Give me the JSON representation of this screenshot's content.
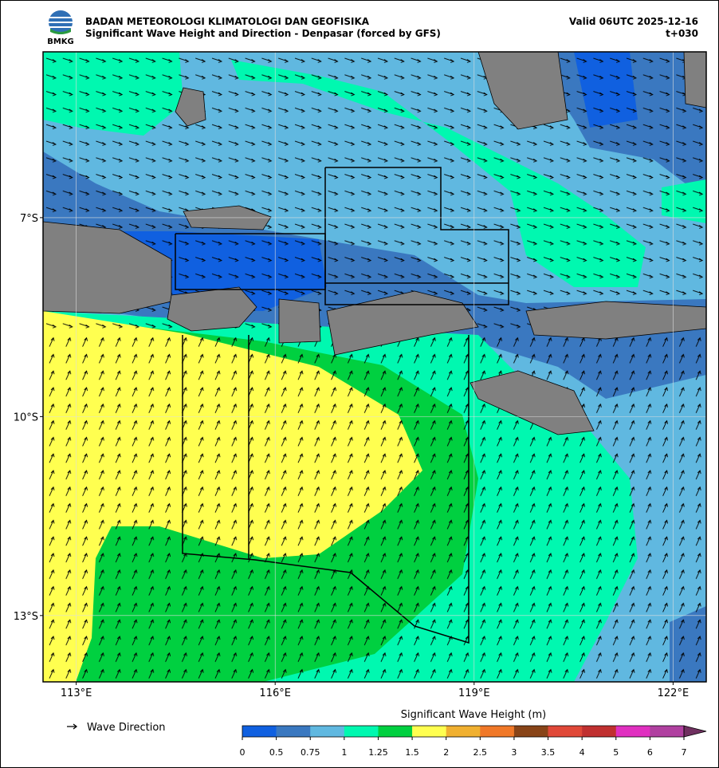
{
  "header": {
    "logo_text": "BMKG",
    "agency": "BADAN METEOROLOGI KLIMATOLOGI DAN GEOFISIKA",
    "title": "Significant Wave Height and Direction - Denpasar (forced by GFS)",
    "valid": "Valid 06UTC 2025-12-16",
    "lead": "t+030"
  },
  "map": {
    "xlim": [
      112.5,
      122.5
    ],
    "ylim": [
      -14,
      -4.5
    ],
    "xticks": [
      {
        "value": 113,
        "label": "113°E"
      },
      {
        "value": 116,
        "label": "116°E"
      },
      {
        "value": 119,
        "label": "119°E"
      },
      {
        "value": 122,
        "label": "122°E"
      }
    ],
    "yticks": [
      {
        "value": -7,
        "label": "7°S"
      },
      {
        "value": -10,
        "label": "10°S"
      },
      {
        "value": -13,
        "label": "13°S"
      }
    ],
    "grid": true
  },
  "legend": {
    "arrow_label": "Wave Direction"
  },
  "colorbar": {
    "title": "Significant Wave Height (m)",
    "boundaries": [
      0,
      0.5,
      0.75,
      1,
      1.25,
      1.5,
      2,
      2.5,
      3,
      3.5,
      4,
      5,
      6,
      7
    ],
    "colors": [
      "#1060e0",
      "#3a78c0",
      "#60b8e0",
      "#00f8b0",
      "#00d040",
      "#ffff50",
      "#f0b030",
      "#f07828",
      "#884418",
      "#e04838",
      "#c03030",
      "#e030c0",
      "#b040a0"
    ],
    "extend_color": "#703060"
  }
}
